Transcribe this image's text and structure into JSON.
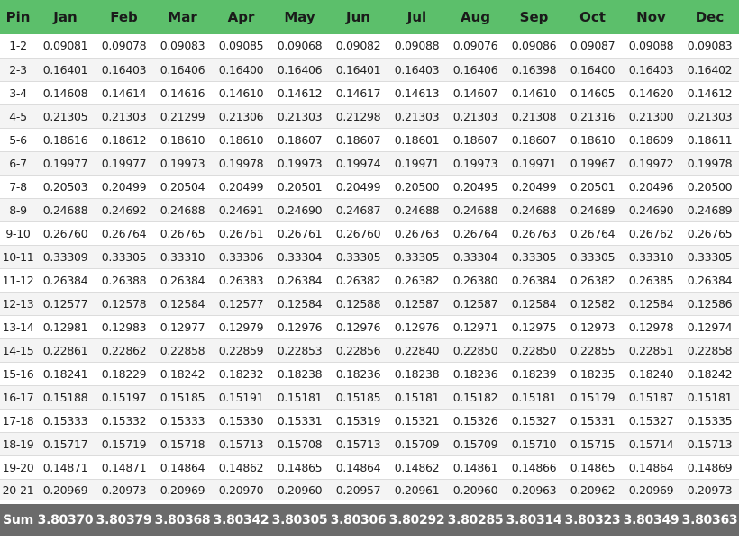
{
  "table": {
    "headers": [
      "Pin",
      "Jan",
      "Feb",
      "Mar",
      "Apr",
      "May",
      "Jun",
      "Jul",
      "Aug",
      "Sep",
      "Oct",
      "Nov",
      "Dec"
    ],
    "rows": [
      [
        "1-2",
        "0.09081",
        "0.09078",
        "0.09083",
        "0.09085",
        "0.09068",
        "0.09082",
        "0.09088",
        "0.09076",
        "0.09086",
        "0.09087",
        "0.09088",
        "0.09083"
      ],
      [
        "2-3",
        "0.16401",
        "0.16403",
        "0.16406",
        "0.16400",
        "0.16406",
        "0.16401",
        "0.16403",
        "0.16406",
        "0.16398",
        "0.16400",
        "0.16403",
        "0.16402"
      ],
      [
        "3-4",
        "0.14608",
        "0.14614",
        "0.14616",
        "0.14610",
        "0.14612",
        "0.14617",
        "0.14613",
        "0.14607",
        "0.14610",
        "0.14605",
        "0.14620",
        "0.14612"
      ],
      [
        "4-5",
        "0.21305",
        "0.21303",
        "0.21299",
        "0.21306",
        "0.21303",
        "0.21298",
        "0.21303",
        "0.21303",
        "0.21308",
        "0.21316",
        "0.21300",
        "0.21303"
      ],
      [
        "5-6",
        "0.18616",
        "0.18612",
        "0.18610",
        "0.18610",
        "0.18607",
        "0.18607",
        "0.18601",
        "0.18607",
        "0.18607",
        "0.18610",
        "0.18609",
        "0.18611"
      ],
      [
        "6-7",
        "0.19977",
        "0.19977",
        "0.19973",
        "0.19978",
        "0.19973",
        "0.19974",
        "0.19971",
        "0.19973",
        "0.19971",
        "0.19967",
        "0.19972",
        "0.19978"
      ],
      [
        "7-8",
        "0.20503",
        "0.20499",
        "0.20504",
        "0.20499",
        "0.20501",
        "0.20499",
        "0.20500",
        "0.20495",
        "0.20499",
        "0.20501",
        "0.20496",
        "0.20500"
      ],
      [
        "8-9",
        "0.24688",
        "0.24692",
        "0.24688",
        "0.24691",
        "0.24690",
        "0.24687",
        "0.24688",
        "0.24688",
        "0.24688",
        "0.24689",
        "0.24690",
        "0.24689"
      ],
      [
        "9-10",
        "0.26760",
        "0.26764",
        "0.26765",
        "0.26761",
        "0.26761",
        "0.26760",
        "0.26763",
        "0.26764",
        "0.26763",
        "0.26764",
        "0.26762",
        "0.26765"
      ],
      [
        "10-11",
        "0.33309",
        "0.33305",
        "0.33310",
        "0.33306",
        "0.33304",
        "0.33305",
        "0.33305",
        "0.33304",
        "0.33305",
        "0.33305",
        "0.33310",
        "0.33305"
      ],
      [
        "11-12",
        "0.26384",
        "0.26388",
        "0.26384",
        "0.26383",
        "0.26384",
        "0.26382",
        "0.26382",
        "0.26380",
        "0.26384",
        "0.26382",
        "0.26385",
        "0.26384"
      ],
      [
        "12-13",
        "0.12577",
        "0.12578",
        "0.12584",
        "0.12577",
        "0.12584",
        "0.12588",
        "0.12587",
        "0.12587",
        "0.12584",
        "0.12582",
        "0.12584",
        "0.12586"
      ],
      [
        "13-14",
        "0.12981",
        "0.12983",
        "0.12977",
        "0.12979",
        "0.12976",
        "0.12976",
        "0.12976",
        "0.12971",
        "0.12975",
        "0.12973",
        "0.12978",
        "0.12974"
      ],
      [
        "14-15",
        "0.22861",
        "0.22862",
        "0.22858",
        "0.22859",
        "0.22853",
        "0.22856",
        "0.22840",
        "0.22850",
        "0.22850",
        "0.22855",
        "0.22851",
        "0.22858"
      ],
      [
        "15-16",
        "0.18241",
        "0.18229",
        "0.18242",
        "0.18232",
        "0.18238",
        "0.18236",
        "0.18238",
        "0.18236",
        "0.18239",
        "0.18235",
        "0.18240",
        "0.18242"
      ],
      [
        "16-17",
        "0.15188",
        "0.15197",
        "0.15185",
        "0.15191",
        "0.15181",
        "0.15185",
        "0.15181",
        "0.15182",
        "0.15181",
        "0.15179",
        "0.15187",
        "0.15181"
      ],
      [
        "17-18",
        "0.15333",
        "0.15332",
        "0.15333",
        "0.15330",
        "0.15331",
        "0.15319",
        "0.15321",
        "0.15326",
        "0.15327",
        "0.15331",
        "0.15327",
        "0.15335"
      ],
      [
        "18-19",
        "0.15717",
        "0.15719",
        "0.15718",
        "0.15713",
        "0.15708",
        "0.15713",
        "0.15709",
        "0.15709",
        "0.15710",
        "0.15715",
        "0.15714",
        "0.15713"
      ],
      [
        "19-20",
        "0.14871",
        "0.14871",
        "0.14864",
        "0.14862",
        "0.14865",
        "0.14864",
        "0.14862",
        "0.14861",
        "0.14866",
        "0.14865",
        "0.14864",
        "0.14869"
      ],
      [
        "20-21",
        "0.20969",
        "0.20973",
        "0.20969",
        "0.20970",
        "0.20960",
        "0.20957",
        "0.20961",
        "0.20960",
        "0.20963",
        "0.20962",
        "0.20969",
        "0.20973"
      ]
    ],
    "footer": [
      "Sum",
      "3.80370",
      "3.80379",
      "3.80368",
      "3.80342",
      "3.80305",
      "3.80306",
      "3.80292",
      "3.80285",
      "3.80314",
      "3.80323",
      "3.80349",
      "3.80363"
    ],
    "colors": {
      "header_bg": "#5cbf6b",
      "footer_bg": "#6b6b6b",
      "row_alt_bg": "#f4f4f4"
    }
  }
}
